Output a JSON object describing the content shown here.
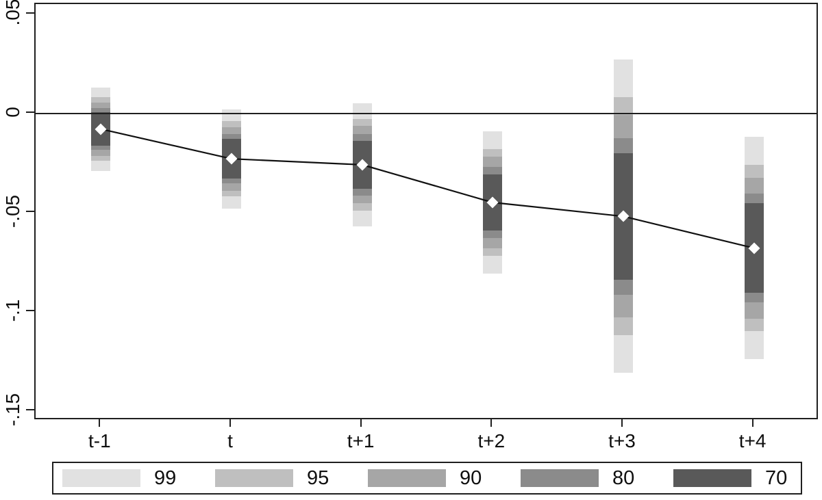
{
  "figure": {
    "background": "#ffffff"
  },
  "colors": {
    "axis": "#1f1f1f",
    "data_line": "#111111",
    "marker_fill": "#ffffff"
  },
  "chart_data": {
    "type": "line",
    "subtype": "event-study coefficient plot with shaded confidence interval bands",
    "title": "",
    "xlabel": "",
    "ylabel": "",
    "grid": "off",
    "categories": [
      "t-1",
      "t",
      "t+1",
      "t+2",
      "t+3",
      "t+4"
    ],
    "estimates": [
      -0.008,
      -0.023,
      -0.026,
      -0.045,
      -0.052,
      -0.068
    ],
    "marker": "white-diamond",
    "reference_line_value": 0,
    "ci_bands": [
      {
        "level": "99",
        "color": "#e1e1e1",
        "upper": [
          0.013,
          0.002,
          0.005,
          -0.009,
          0.027,
          -0.012
        ],
        "lower": [
          -0.029,
          -0.048,
          -0.057,
          -0.081,
          -0.131,
          -0.124
        ]
      },
      {
        "level": "95",
        "color": "#bfbfbf",
        "upper": [
          0.008,
          -0.004,
          -0.003,
          -0.018,
          0.008,
          -0.026
        ],
        "lower": [
          -0.024,
          -0.042,
          -0.049,
          -0.072,
          -0.112,
          -0.11
        ]
      },
      {
        "level": "90",
        "color": "#a6a6a6",
        "upper": [
          0.0055,
          -0.007,
          -0.0065,
          -0.022,
          -0.001,
          -0.0325
        ],
        "lower": [
          -0.0215,
          -0.039,
          -0.0455,
          -0.068,
          -0.103,
          -0.1035
        ]
      },
      {
        "level": "80",
        "color": "#8b8b8b",
        "upper": [
          0.0025,
          -0.0105,
          -0.0105,
          -0.027,
          -0.0125,
          -0.0405
        ],
        "lower": [
          -0.0185,
          -0.0355,
          -0.0415,
          -0.063,
          -0.0915,
          -0.0955
        ]
      },
      {
        "level": "70",
        "color": "#595959",
        "upper": [
          0.0005,
          -0.013,
          -0.014,
          -0.031,
          -0.02,
          -0.0455
        ],
        "lower": [
          -0.0165,
          -0.033,
          -0.038,
          -0.059,
          -0.084,
          -0.0905
        ]
      }
    ],
    "y_axis": {
      "range": [
        -0.155,
        0.055
      ],
      "ticks": [
        {
          "value": 0.05,
          "label": ".05"
        },
        {
          "value": 0,
          "label": "0"
        },
        {
          "value": -0.05,
          "label": "-.05"
        },
        {
          "value": -0.1,
          "label": "-.1"
        },
        {
          "value": -0.15,
          "label": "-.15"
        }
      ]
    },
    "x_axis": {
      "labels": [
        "t-1",
        "t",
        "t+1",
        "t+2",
        "t+3",
        "t+4"
      ]
    },
    "legend": {
      "position": "bottom",
      "entries": [
        {
          "label": "99",
          "color": "#e1e1e1"
        },
        {
          "label": "95",
          "color": "#bfbfbf"
        },
        {
          "label": "90",
          "color": "#a6a6a6"
        },
        {
          "label": "80",
          "color": "#8b8b8b"
        },
        {
          "label": "70",
          "color": "#595959"
        }
      ]
    }
  }
}
